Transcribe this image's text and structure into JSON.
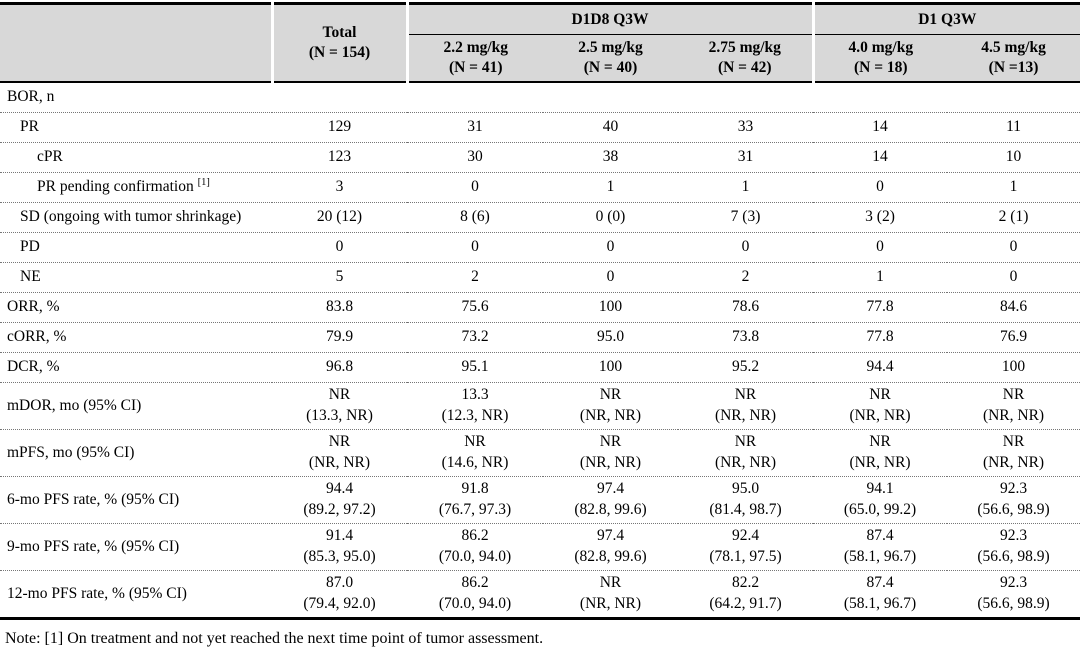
{
  "table": {
    "header": {
      "total": "Total\n(N = 154)",
      "groups": [
        {
          "label": "D1D8 Q3W",
          "cols": [
            "2.2 mg/kg\n(N = 41)",
            "2.5 mg/kg\n(N = 40)",
            "2.75 mg/kg\n(N = 42)"
          ]
        },
        {
          "label": "D1 Q3W",
          "cols": [
            "4.0 mg/kg\n(N = 18)",
            "4.5 mg/kg\n(N =13)"
          ]
        }
      ]
    },
    "rows": [
      {
        "label": "BOR, n",
        "bold": true,
        "indent": 0,
        "values": [
          "",
          "",
          "",
          "",
          "",
          ""
        ]
      },
      {
        "label": "PR",
        "bold": false,
        "indent": 1,
        "values": [
          "129",
          "31",
          "40",
          "33",
          "14",
          "11"
        ]
      },
      {
        "label": "cPR",
        "bold": false,
        "indent": 2,
        "values": [
          "123",
          "30",
          "38",
          "31",
          "14",
          "10"
        ]
      },
      {
        "label": "PR pending confirmation",
        "sup": "[1]",
        "bold": false,
        "indent": 2,
        "values": [
          "3",
          "0",
          "1",
          "1",
          "0",
          "1"
        ]
      },
      {
        "label": "SD (ongoing with tumor shrinkage)",
        "bold": false,
        "indent": 1,
        "values": [
          "20 (12)",
          "8 (6)",
          "0 (0)",
          "7 (3)",
          "3 (2)",
          "2 (1)"
        ]
      },
      {
        "label": "PD",
        "bold": false,
        "indent": 1,
        "values": [
          "0",
          "0",
          "0",
          "0",
          "0",
          "0"
        ]
      },
      {
        "label": "NE",
        "bold": false,
        "indent": 1,
        "values": [
          "5",
          "2",
          "0",
          "2",
          "1",
          "0"
        ]
      },
      {
        "label": "ORR, %",
        "bold": true,
        "indent": 0,
        "values": [
          "83.8",
          "75.6",
          "100",
          "78.6",
          "77.8",
          "84.6"
        ]
      },
      {
        "label": "cORR, %",
        "bold": true,
        "indent": 0,
        "values": [
          "79.9",
          "73.2",
          "95.0",
          "73.8",
          "77.8",
          "76.9"
        ]
      },
      {
        "label": "DCR, %",
        "bold": true,
        "indent": 0,
        "values": [
          "96.8",
          "95.1",
          "100",
          "95.2",
          "94.4",
          "100"
        ]
      },
      {
        "label": "mDOR, mo (95% CI)",
        "bold": true,
        "indent": 0,
        "values": [
          "NR\n(13.3, NR)",
          "13.3\n(12.3, NR)",
          "NR\n(NR, NR)",
          "NR\n(NR, NR)",
          "NR\n(NR, NR)",
          "NR\n(NR, NR)"
        ]
      },
      {
        "label": "mPFS, mo (95% CI)",
        "bold": true,
        "indent": 0,
        "values": [
          "NR\n(NR, NR)",
          "NR\n(14.6, NR)",
          "NR\n(NR, NR)",
          "NR\n(NR, NR)",
          "NR\n(NR, NR)",
          "NR\n(NR, NR)"
        ]
      },
      {
        "label": "6-mo PFS rate, % (95% CI)",
        "bold": true,
        "indent": 0,
        "values": [
          "94.4\n(89.2, 97.2)",
          "91.8\n(76.7, 97.3)",
          "97.4\n(82.8, 99.6)",
          "95.0\n(81.4, 98.7)",
          "94.1\n(65.0, 99.2)",
          "92.3\n(56.6, 98.9)"
        ]
      },
      {
        "label": "9-mo PFS rate, % (95% CI)",
        "bold": true,
        "indent": 0,
        "values": [
          "91.4\n(85.3, 95.0)",
          "86.2\n(70.0, 94.0)",
          "97.4\n(82.8, 99.6)",
          "92.4\n(78.1, 97.5)",
          "87.4\n(58.1, 96.7)",
          "92.3\n(56.6, 98.9)"
        ]
      },
      {
        "label": "12-mo PFS rate, % (95% CI)",
        "bold": true,
        "indent": 0,
        "values": [
          "87.0\n(79.4, 92.0)",
          "86.2\n(70.0, 94.0)",
          "NR\n(NR, NR)",
          "82.2\n(64.2, 91.7)",
          "87.4\n(58.1, 96.7)",
          "92.3\n(56.6, 98.9)"
        ]
      }
    ],
    "note": "Note: [1] On treatment and not yet reached the next time point of tumor assessment."
  }
}
